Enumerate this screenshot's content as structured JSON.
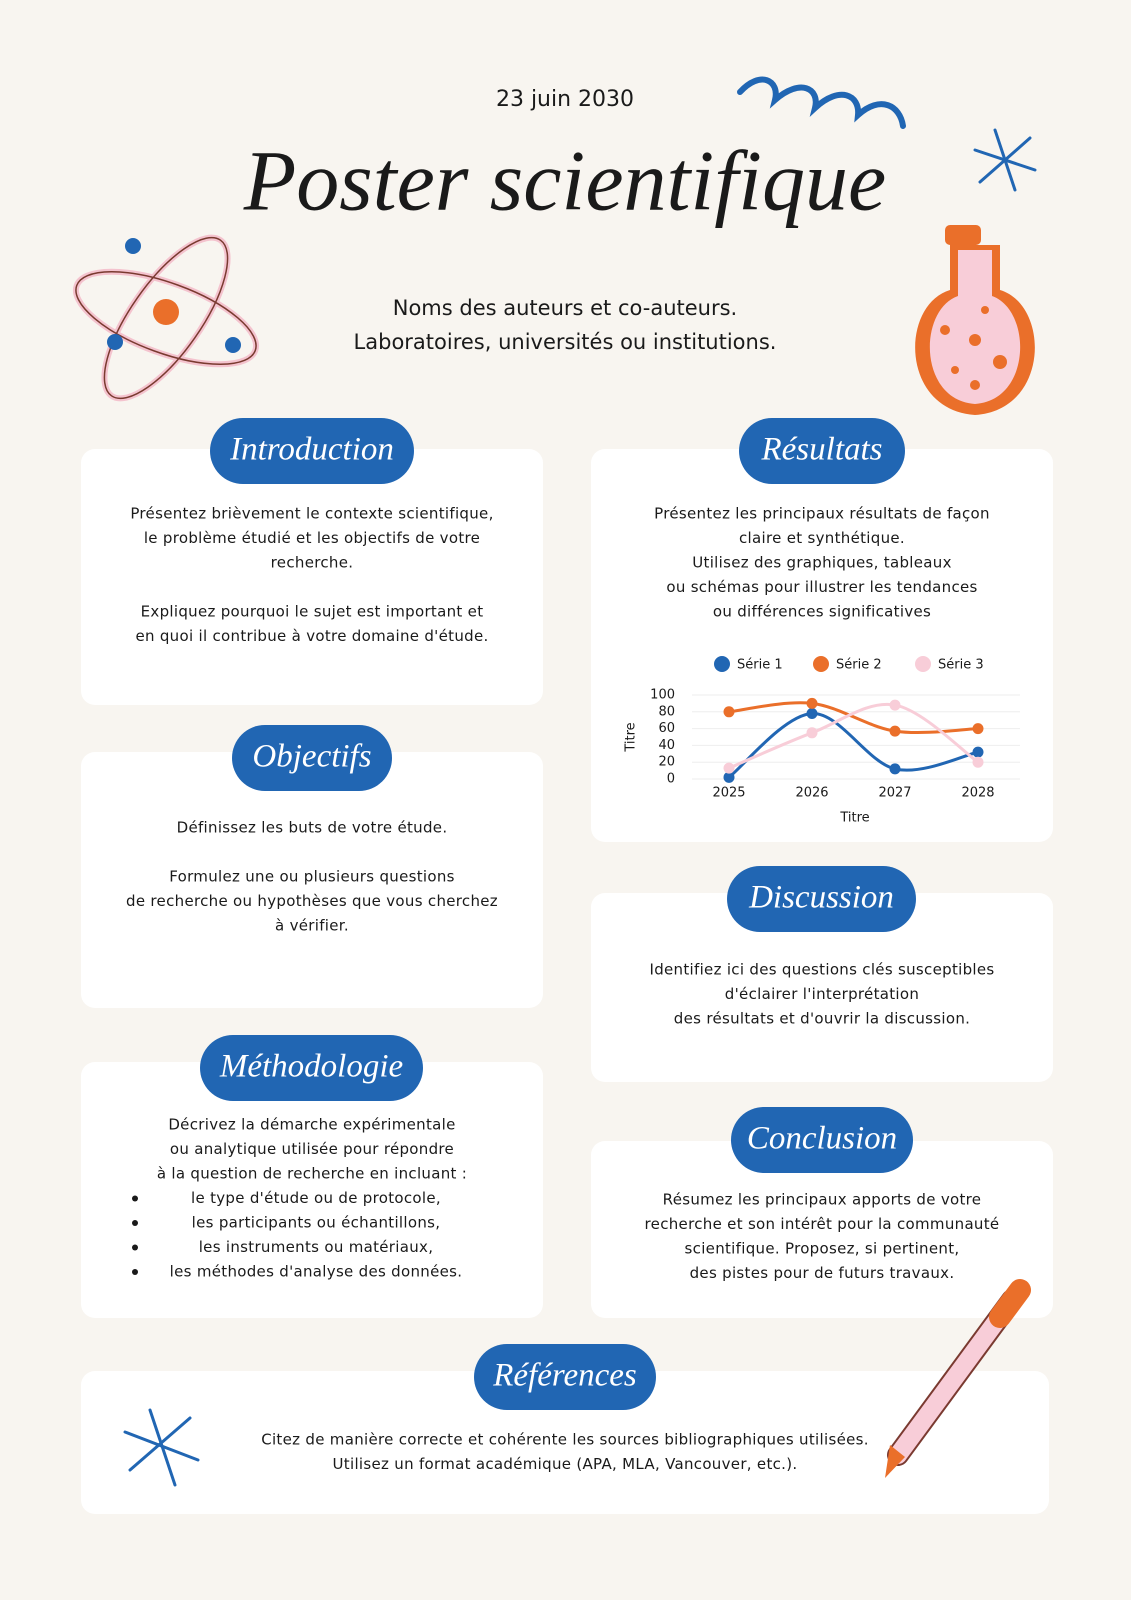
{
  "header": {
    "date": "23 juin 2030",
    "title": "Poster scientifique",
    "authors": [
      "Noms des auteurs et co-auteurs.",
      "Laboratoires, universités ou institutions."
    ]
  },
  "sections": {
    "introduction": {
      "title": "Introduction",
      "paragraphs": [
        [
          "Présentez brièvement le contexte scientifique,",
          "le problème étudié et les objectifs de votre",
          "recherche."
        ],
        [
          "Expliquez pourquoi le sujet est important et",
          "en quoi il contribue à votre domaine d'étude."
        ]
      ]
    },
    "objectifs": {
      "title": "Objectifs",
      "paragraphs": [
        [
          "Définissez les buts de votre étude."
        ],
        [
          "Formulez une ou plusieurs questions",
          "de recherche ou hypothèses que vous cherchez",
          "à vérifier."
        ]
      ]
    },
    "methodologie": {
      "title": "Méthodologie",
      "paragraphs": [
        [
          "Décrivez la démarche expérimentale",
          "ou analytique utilisée pour répondre",
          "à la question de recherche en incluant :"
        ]
      ],
      "items": [
        "le type d'étude ou de protocole,",
        "les participants ou échantillons,",
        "les instruments ou matériaux,",
        "les méthodes d'analyse des données."
      ]
    },
    "resultats": {
      "title": "Résultats",
      "paragraphs": [
        [
          "Présentez les principaux résultats de façon",
          "claire et synthétique.",
          "Utilisez des graphiques, tableaux",
          "ou schémas pour illustrer les tendances",
          "ou différences significatives"
        ]
      ]
    },
    "discussion": {
      "title": "Discussion",
      "paragraphs": [
        [
          "Identifiez ici des questions clés susceptibles",
          "d'éclairer l'interprétation",
          "des résultats et d'ouvrir la discussion."
        ]
      ]
    },
    "conclusion": {
      "title": "Conclusion",
      "paragraphs": [
        [
          "Résumez les principaux apports de votre",
          "recherche et son intérêt pour la communauté",
          "scientifique. Proposez, si pertinent,",
          "des pistes pour de futurs travaux."
        ]
      ]
    },
    "references": {
      "title": "Références",
      "paragraphs": [
        [
          "Citez de manière correcte et cohérente les sources bibliographiques utilisées.",
          "Utilisez un format académique (APA, MLA, Vancouver, etc.)."
        ]
      ]
    }
  },
  "chart_data": {
    "type": "line",
    "categories": [
      "2025",
      "2026",
      "2027",
      "2028"
    ],
    "series": [
      {
        "name": "Série 1",
        "color": "#2166b3",
        "values": [
          2,
          78,
          12,
          32
        ]
      },
      {
        "name": "Série 2",
        "color": "#ea6f2a",
        "values": [
          80,
          90,
          57,
          60
        ]
      },
      {
        "name": "Série 3",
        "color": "#f8cdd8",
        "values": [
          13,
          55,
          88,
          20
        ]
      }
    ],
    "ylim": [
      0,
      100
    ],
    "yticks": [
      0,
      20,
      40,
      60,
      80,
      100
    ],
    "x_label": "Titre",
    "y_label": "Titre",
    "grid": true,
    "legend": "top",
    "smooth": true
  }
}
